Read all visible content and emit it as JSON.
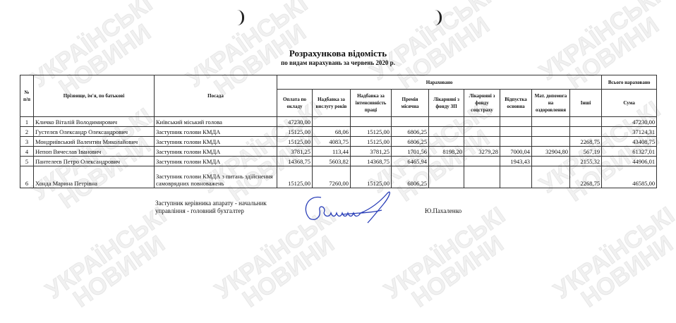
{
  "watermark": {
    "line1": "УКРАЇНСЬКІ",
    "line2": "НОВИНИ"
  },
  "document": {
    "title": "Розрахункова відомість",
    "subtitle": "по видам нарахувань за червень 2020 р."
  },
  "table": {
    "headers": {
      "num": "№ п/п",
      "name": "Прізвище, ім'я, по батькові",
      "position": "Посада",
      "accrued": "Нараховано",
      "total_accrued": "Всього нараховано",
      "columns": [
        "Оплата по окладу",
        "Надбавка за вислугу років",
        "Надбавка за інтенсивність праці",
        "Премія місячна",
        "Лікарняні з фонду ЗП",
        "Лікарняні з фонду соцстраху",
        "Відпустка основна",
        "Мат. допомога на оздоровлення",
        "Інші"
      ],
      "sum": "Сума"
    },
    "rows": [
      {
        "num": "1",
        "name": "Кличко Віталій Володимирович",
        "position": "Київський міський голова",
        "values": [
          "47230,00",
          "",
          "",
          "",
          "",
          "",
          "",
          "",
          ""
        ],
        "sum": "47230,00"
      },
      {
        "num": "2",
        "name": "Густелєв Олександр Олександрович",
        "position": "Заступник голови КМДА",
        "values": [
          "15125,00",
          "68,06",
          "15125,00",
          "6806,25",
          "",
          "",
          "",
          "",
          ""
        ],
        "sum": "37124,31"
      },
      {
        "num": "3",
        "name": "Мондриївський Валентин Миколайович",
        "position": "Заступник голови КМДА",
        "values": [
          "15125,00",
          "4083,75",
          "15125,00",
          "6806,25",
          "",
          "",
          "",
          "",
          "2268,75"
        ],
        "sum": "43408,75"
      },
      {
        "num": "4",
        "name": "Непоп Вячеслав Іванович",
        "position": "Заступник голови КМДА",
        "values": [
          "3781,25",
          "113,44",
          "3781,25",
          "1701,56",
          "8198,20",
          "3279,28",
          "7000,04",
          "32904,80",
          "567,19"
        ],
        "sum": "61327,01"
      },
      {
        "num": "5",
        "name": "Пантелеєв Петро Олександрович",
        "position": "Заступник голови КМДА",
        "values": [
          "14368,75",
          "5603,82",
          "14368,75",
          "6465,94",
          "",
          "",
          "1943,43",
          "",
          "2155,32"
        ],
        "sum": "44906,01"
      },
      {
        "num": "6",
        "name": "Хонда Марина Петрівна",
        "position": "Заступник голови КМДА з питань здійснення самоврядних повноважень",
        "values": [
          "15125,00",
          "7260,00",
          "15125,00",
          "6806,25",
          "",
          "",
          "",
          "",
          "2268,75"
        ],
        "sum": "46585,00"
      }
    ]
  },
  "signature": {
    "title": "Заступник керівника апарату - начальник управління - головний бухгалтер",
    "name": "Ю.Пахаленко",
    "ink_color": "#2a3fb8"
  }
}
